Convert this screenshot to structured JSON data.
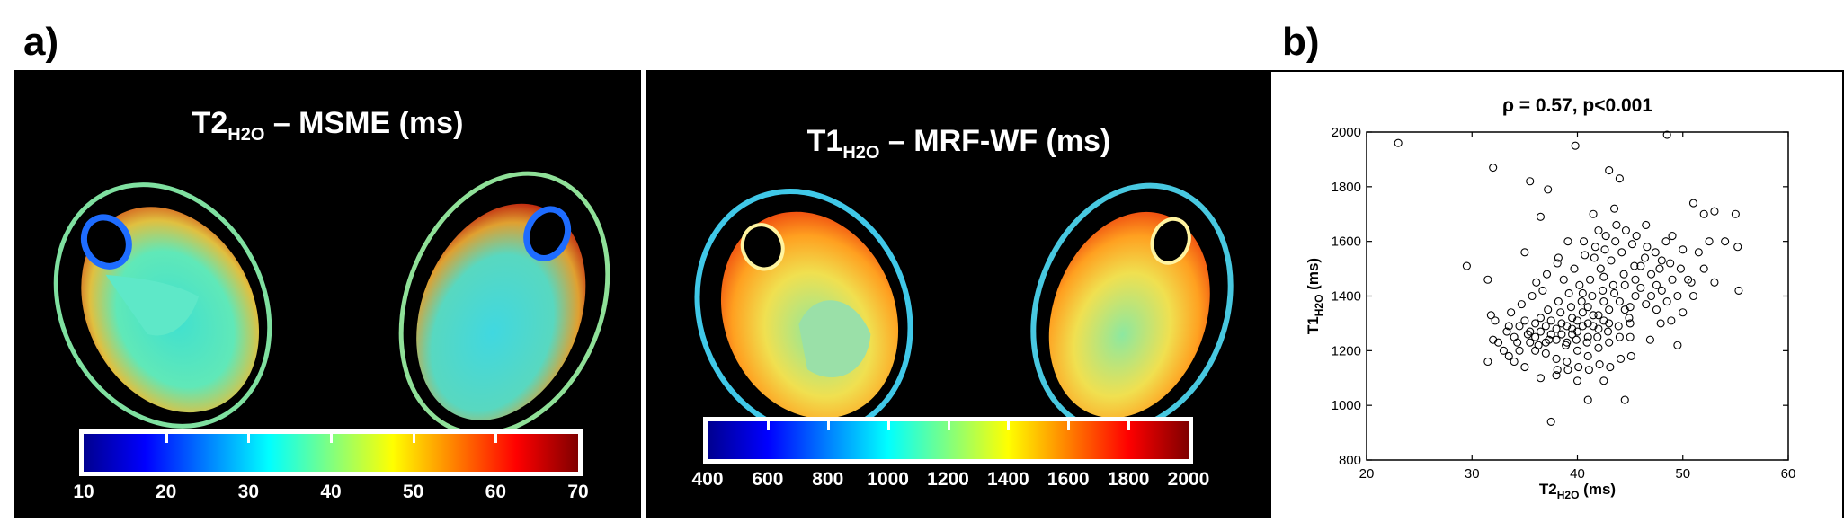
{
  "panels": {
    "a_label": "a)",
    "b_label": "b)"
  },
  "map1": {
    "title_main": "T2",
    "title_sub": "H2O",
    "title_rest": " – MSME (ms)",
    "colorbar_ticks": [
      "10",
      "20",
      "30",
      "40",
      "50",
      "60",
      "70"
    ]
  },
  "map2": {
    "title_main": "T1",
    "title_sub": "H2O",
    "title_rest": " – MRF-WF (ms)",
    "colorbar_ticks": [
      "400",
      "600",
      "800",
      "1000",
      "1200",
      "1400",
      "1600",
      "1800",
      "2000"
    ]
  },
  "colors": {
    "jet": [
      "#00008f",
      "#0000ff",
      "#0080ff",
      "#00ffff",
      "#80ff80",
      "#ffff00",
      "#ff8000",
      "#ff0000",
      "#800000"
    ],
    "background": "#000000"
  },
  "chart_data": {
    "type": "scatter",
    "title": "ρ = 0.57, p<0.001",
    "xlabel_main": "T2",
    "xlabel_sub": "H2O",
    "xlabel_unit": " (ms)",
    "ylabel_main": "T1",
    "ylabel_sub": "H2O",
    "ylabel_unit": " (ms)",
    "xlim": [
      20,
      60
    ],
    "ylim": [
      800,
      2000
    ],
    "xticks": [
      20,
      30,
      40,
      50,
      60
    ],
    "yticks": [
      800,
      1000,
      1200,
      1400,
      1600,
      1800,
      2000
    ],
    "marker": "open-circle",
    "grid": false,
    "points": [
      [
        23,
        1960
      ],
      [
        32,
        1870
      ],
      [
        29.5,
        1510
      ],
      [
        31.5,
        1460
      ],
      [
        31.8,
        1330
      ],
      [
        32.2,
        1310
      ],
      [
        33.5,
        1290
      ],
      [
        34,
        1250
      ],
      [
        35,
        1560
      ],
      [
        35.5,
        1820
      ],
      [
        36.5,
        1690
      ],
      [
        37.2,
        1790
      ],
      [
        38.2,
        1540
      ],
      [
        39.8,
        1950
      ],
      [
        39.5,
        1260
      ],
      [
        40.5,
        1410
      ],
      [
        41.0,
        1300
      ],
      [
        41.5,
        1700
      ],
      [
        42.0,
        1640
      ],
      [
        42.5,
        1470
      ],
      [
        43.0,
        1860
      ],
      [
        43.5,
        1720
      ],
      [
        44.0,
        1830
      ],
      [
        44.5,
        1350
      ],
      [
        45.0,
        1250
      ],
      [
        45.5,
        1460
      ],
      [
        46.0,
        1510
      ],
      [
        46.5,
        1660
      ],
      [
        47.0,
        1400
      ],
      [
        47.5,
        1350
      ],
      [
        48.0,
        1530
      ],
      [
        48.5,
        1990
      ],
      [
        49.0,
        1620
      ],
      [
        49.5,
        1220
      ],
      [
        50.0,
        1570
      ],
      [
        50.5,
        1460
      ],
      [
        51.0,
        1740
      ],
      [
        52.0,
        1700
      ],
      [
        52.5,
        1600
      ],
      [
        53.0,
        1710
      ],
      [
        54.0,
        1600
      ],
      [
        55.0,
        1700
      ],
      [
        55.2,
        1580
      ],
      [
        55.3,
        1420
      ],
      [
        37.5,
        940
      ],
      [
        41.0,
        1020
      ],
      [
        44.5,
        1020
      ],
      [
        42.5,
        1090
      ],
      [
        40.0,
        1090
      ],
      [
        38.0,
        1110
      ],
      [
        36.5,
        1100
      ],
      [
        35.0,
        1140
      ],
      [
        34.0,
        1160
      ],
      [
        33.0,
        1200
      ],
      [
        32.5,
        1230
      ],
      [
        31.5,
        1160
      ],
      [
        32.0,
        1240
      ],
      [
        33.5,
        1180
      ],
      [
        34.5,
        1200
      ],
      [
        35.5,
        1230
      ],
      [
        36.0,
        1250
      ],
      [
        36.5,
        1270
      ],
      [
        37.0,
        1230
      ],
      [
        37.5,
        1260
      ],
      [
        38.0,
        1280
      ],
      [
        38.5,
        1300
      ],
      [
        39.0,
        1230
      ],
      [
        39.5,
        1320
      ],
      [
        40.0,
        1270
      ],
      [
        40.5,
        1340
      ],
      [
        41.0,
        1360
      ],
      [
        41.5,
        1290
      ],
      [
        42.0,
        1330
      ],
      [
        42.5,
        1380
      ],
      [
        43.0,
        1300
      ],
      [
        43.5,
        1410
      ],
      [
        44.0,
        1380
      ],
      [
        44.5,
        1440
      ],
      [
        45.0,
        1360
      ],
      [
        45.5,
        1400
      ],
      [
        46.0,
        1430
      ],
      [
        46.5,
        1370
      ],
      [
        47.0,
        1480
      ],
      [
        47.5,
        1440
      ],
      [
        48.0,
        1420
      ],
      [
        48.5,
        1380
      ],
      [
        49.0,
        1460
      ],
      [
        49.5,
        1400
      ],
      [
        50.0,
        1340
      ],
      [
        51.0,
        1400
      ],
      [
        52.0,
        1500
      ],
      [
        53.0,
        1450
      ],
      [
        34.5,
        1290
      ],
      [
        35.0,
        1310
      ],
      [
        35.5,
        1270
      ],
      [
        36.0,
        1300
      ],
      [
        36.5,
        1320
      ],
      [
        37.0,
        1290
      ],
      [
        37.5,
        1310
      ],
      [
        38.0,
        1240
      ],
      [
        38.5,
        1260
      ],
      [
        39.0,
        1290
      ],
      [
        39.5,
        1280
      ],
      [
        40.0,
        1310
      ],
      [
        40.5,
        1290
      ],
      [
        41.0,
        1250
      ],
      [
        41.5,
        1330
      ],
      [
        42.0,
        1280
      ],
      [
        42.5,
        1310
      ],
      [
        43.0,
        1350
      ],
      [
        36.0,
        1200
      ],
      [
        37.0,
        1190
      ],
      [
        38.0,
        1170
      ],
      [
        39.0,
        1160
      ],
      [
        40.0,
        1200
      ],
      [
        41.0,
        1180
      ],
      [
        42.0,
        1210
      ],
      [
        43.0,
        1230
      ],
      [
        44.0,
        1250
      ],
      [
        45.0,
        1300
      ],
      [
        37.2,
        1350
      ],
      [
        38.2,
        1380
      ],
      [
        39.2,
        1410
      ],
      [
        40.2,
        1440
      ],
      [
        41.2,
        1460
      ],
      [
        42.2,
        1500
      ],
      [
        43.2,
        1530
      ],
      [
        44.2,
        1560
      ],
      [
        45.2,
        1590
      ],
      [
        38.7,
        1460
      ],
      [
        39.7,
        1500
      ],
      [
        40.7,
        1550
      ],
      [
        41.7,
        1580
      ],
      [
        42.7,
        1620
      ],
      [
        43.7,
        1660
      ],
      [
        36.7,
        1420
      ],
      [
        35.7,
        1400
      ],
      [
        34.7,
        1370
      ],
      [
        33.7,
        1340
      ],
      [
        38.4,
        1340
      ],
      [
        39.4,
        1360
      ],
      [
        40.4,
        1380
      ],
      [
        41.4,
        1400
      ],
      [
        42.4,
        1420
      ],
      [
        43.4,
        1440
      ],
      [
        44.4,
        1480
      ],
      [
        45.4,
        1510
      ],
      [
        46.4,
        1540
      ],
      [
        47.4,
        1560
      ],
      [
        48.4,
        1600
      ],
      [
        38.9,
        1220
      ],
      [
        39.9,
        1240
      ],
      [
        40.9,
        1230
      ],
      [
        41.9,
        1250
      ],
      [
        42.9,
        1270
      ],
      [
        43.9,
        1290
      ],
      [
        44.9,
        1320
      ],
      [
        36.3,
        1220
      ],
      [
        37.3,
        1240
      ],
      [
        35.3,
        1260
      ],
      [
        34.3,
        1230
      ],
      [
        33.3,
        1270
      ],
      [
        40.6,
        1600
      ],
      [
        41.6,
        1540
      ],
      [
        42.6,
        1570
      ],
      [
        43.6,
        1600
      ],
      [
        44.6,
        1640
      ],
      [
        45.6,
        1620
      ],
      [
        46.6,
        1580
      ],
      [
        39.1,
        1600
      ],
      [
        38.1,
        1520
      ],
      [
        37.1,
        1480
      ],
      [
        36.1,
        1450
      ],
      [
        47.8,
        1500
      ],
      [
        48.8,
        1520
      ],
      [
        49.8,
        1500
      ],
      [
        50.8,
        1450
      ],
      [
        51.5,
        1560
      ],
      [
        46.9,
        1240
      ],
      [
        47.9,
        1300
      ],
      [
        48.9,
        1310
      ],
      [
        44.1,
        1170
      ],
      [
        45.1,
        1180
      ],
      [
        43.1,
        1140
      ],
      [
        42.1,
        1150
      ],
      [
        41.1,
        1130
      ],
      [
        40.1,
        1140
      ],
      [
        39.1,
        1130
      ],
      [
        38.1,
        1130
      ]
    ]
  }
}
